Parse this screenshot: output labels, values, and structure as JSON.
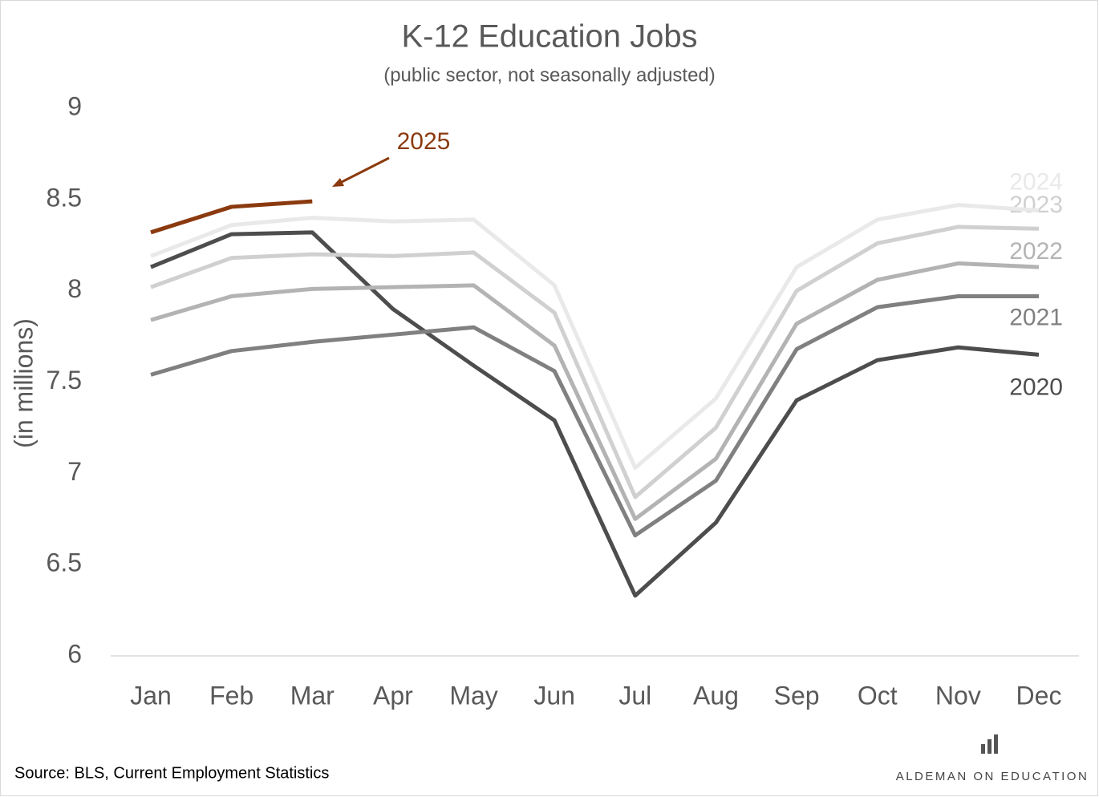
{
  "chart_data": {
    "type": "line",
    "title": "K-12 Education Jobs",
    "subtitle": "(public sector, not seasonally adjusted)",
    "y_label": "(in millions)",
    "categories": [
      "Jan",
      "Feb",
      "Mar",
      "Apr",
      "May",
      "Jun",
      "Jul",
      "Aug",
      "Sep",
      "Oct",
      "Nov",
      "Dec"
    ],
    "series": [
      {
        "name": "2020",
        "color": "#4d4d4d",
        "values": [
          8.13,
          8.31,
          8.32,
          7.9,
          7.59,
          7.29,
          6.33,
          6.73,
          7.4,
          7.62,
          7.69,
          7.65
        ]
      },
      {
        "name": "2021",
        "color": "#808080",
        "values": [
          7.54,
          7.67,
          7.72,
          7.76,
          7.8,
          7.56,
          6.66,
          6.96,
          7.68,
          7.91,
          7.97,
          7.97
        ]
      },
      {
        "name": "2022",
        "color": "#b3b3b3",
        "values": [
          7.84,
          7.97,
          8.01,
          8.02,
          8.03,
          7.7,
          6.75,
          7.08,
          7.82,
          8.06,
          8.15,
          8.13
        ]
      },
      {
        "name": "2023",
        "color": "#d0d0d0",
        "values": [
          8.02,
          8.18,
          8.2,
          8.19,
          8.21,
          7.88,
          6.87,
          7.25,
          8.0,
          8.26,
          8.35,
          8.34
        ]
      },
      {
        "name": "2024",
        "color": "#e9e9e9",
        "values": [
          8.19,
          8.36,
          8.4,
          8.38,
          8.39,
          8.03,
          7.03,
          7.41,
          8.13,
          8.39,
          8.47,
          8.44
        ]
      },
      {
        "name": "2025",
        "color": "#8b3a0f",
        "values": [
          8.32,
          8.46,
          8.49,
          null,
          null,
          null,
          null,
          null,
          null,
          null,
          null,
          null
        ]
      }
    ],
    "ylim": [
      6,
      9
    ],
    "yticks": [
      6,
      6.5,
      7,
      7.5,
      8,
      8.5,
      9
    ],
    "grid": false
  },
  "footer": {
    "source": "Source: BLS, Current Employment Statistics",
    "brand": "ALDEMAN ON EDUCATION"
  }
}
